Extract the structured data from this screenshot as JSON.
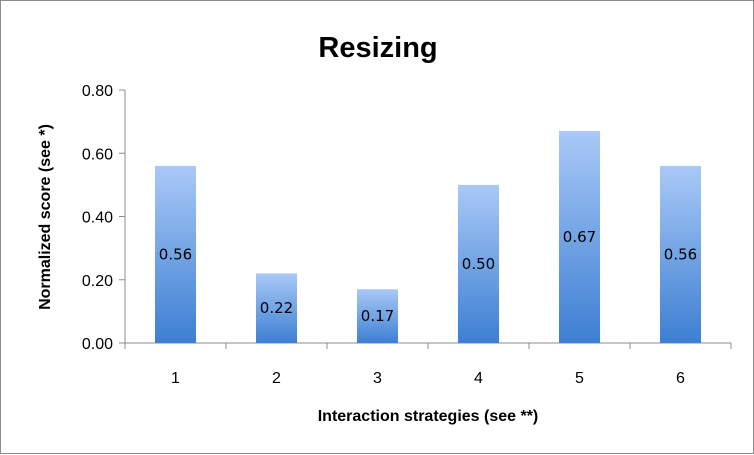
{
  "chart_data": {
    "type": "bar",
    "title": "Resizing",
    "xlabel": "Interaction strategies (see **)",
    "ylabel": "Normalized score (see *)",
    "categories": [
      "1",
      "2",
      "3",
      "4",
      "5",
      "6"
    ],
    "values": [
      0.56,
      0.22,
      0.17,
      0.5,
      0.67,
      0.56
    ],
    "data_labels": [
      "0.56",
      "0.22",
      "0.17",
      "0.50",
      "0.67",
      "0.56"
    ],
    "yticks": [
      "0.00",
      "0.20",
      "0.40",
      "0.60",
      "0.80"
    ],
    "ylim": [
      0,
      0.8
    ],
    "grid": false,
    "legend": "none",
    "bar_color_top": "#a9c9f7",
    "bar_color_bottom": "#3d7fd2"
  }
}
